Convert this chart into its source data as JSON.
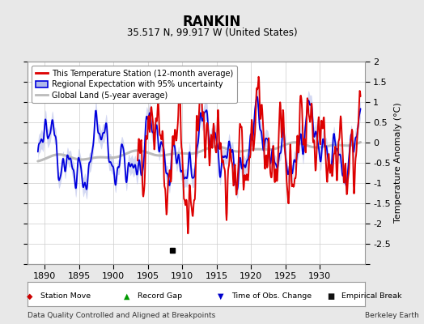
{
  "title": "RANKIN",
  "subtitle": "35.517 N, 99.917 W (United States)",
  "ylabel": "Temperature Anomaly (°C)",
  "xlabel_note": "Data Quality Controlled and Aligned at Breakpoints",
  "credit": "Berkeley Earth",
  "xlim": [
    1887.5,
    1936.5
  ],
  "ylim": [
    -3.0,
    2.0
  ],
  "yticks": [
    -3,
    -2.5,
    -2,
    -1.5,
    -1,
    -0.5,
    0,
    0.5,
    1,
    1.5,
    2
  ],
  "xticks": [
    1890,
    1895,
    1900,
    1905,
    1910,
    1915,
    1920,
    1925,
    1930
  ],
  "bg_color": "#e8e8e8",
  "plot_bg_color": "#ffffff",
  "grid_color": "#cccccc",
  "empirical_break_x": 1908.5,
  "empirical_break_y": -2.65,
  "region_fill_color": "#b0b8e8",
  "region_line_color": "#0000dd",
  "station_line_color": "#dd0000",
  "global_line_color": "#bbbbbb",
  "legend_bg": "#ffffff",
  "legend_edge": "#999999"
}
